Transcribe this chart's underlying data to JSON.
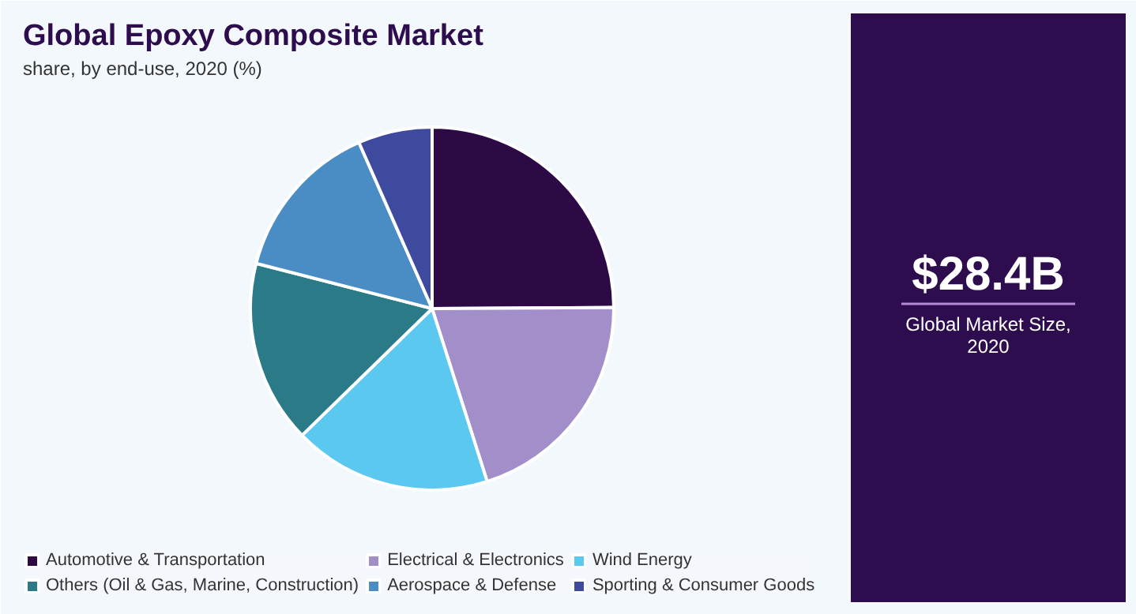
{
  "chart_data": {
    "type": "pie",
    "title": "Global Epoxy Composite Market",
    "subtitle": "share, by end-use, 2020 (%)",
    "categories": [
      "Automotive & Transportation",
      "Electrical & Electronics",
      "Wind Energy",
      "Others (Oil & Gas, Marine, Construction)",
      "Aerospace & Defense",
      "Sporting & Consumer Goods"
    ],
    "values": [
      24.9,
      20.2,
      17.6,
      16.3,
      14.4,
      6.6
    ],
    "colors": [
      "#2d0a45",
      "#a28fc9",
      "#5bc8f0",
      "#2a7a88",
      "#4a8cc4",
      "#3e4a9e"
    ],
    "legend": "bottom",
    "annotations": [
      "$28.4B",
      "Global Market Size, 2020"
    ]
  }
}
